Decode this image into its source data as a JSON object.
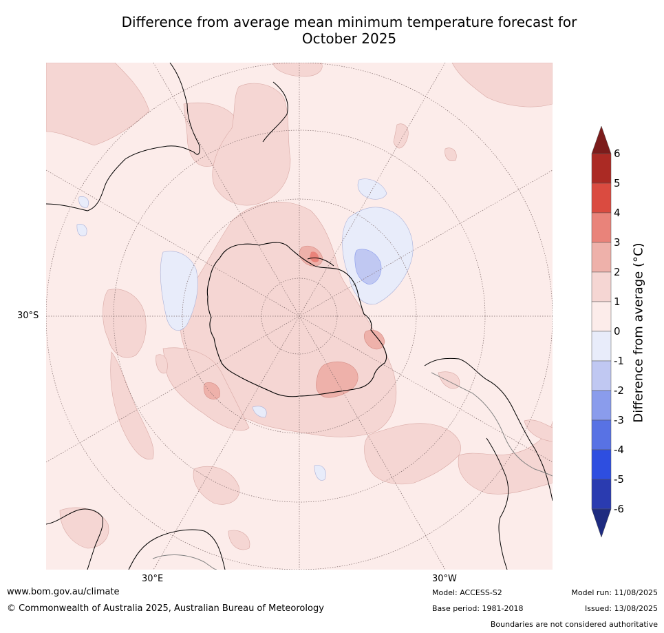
{
  "title_line1": "Difference from average mean minimum temperature forecast for",
  "title_line2": "October 2025",
  "map": {
    "projection": "south-polar-stereographic",
    "graticule_label_lat": "30°S",
    "graticule_label_lon_left": "30°E",
    "graticule_label_lon_right": "30°W",
    "anomaly_features": [
      {
        "region": "East Antarctica near 150°E coast",
        "anomaly_class": "2 to 3"
      },
      {
        "region": "Weddell Sea / Antarctic Peninsula sector",
        "anomaly_class": "2 to 3"
      },
      {
        "region": "South Atlantic near South Africa",
        "anomaly_class": "2 to 3"
      },
      {
        "region": "Southern Ocean near 40°W",
        "anomaly_class": "2 to 3"
      },
      {
        "region": "Southern Ocean south of Africa",
        "anomaly_class": "-1 to 0"
      },
      {
        "region": "Pacific sector east of New Zealand",
        "anomaly_class": "-2 to -1"
      }
    ]
  },
  "colorbar": {
    "label": "Difference from average ($^\\circ$C)",
    "label_display": "Difference from average (°C)",
    "ticks": [
      "6",
      "5",
      "4",
      "3",
      "2",
      "1",
      "0",
      "-1",
      "-2",
      "-3",
      "-4",
      "-5",
      "-6"
    ],
    "colors_top_to_bottom": [
      "#7b1c1b",
      "#ab2a24",
      "#da4b40",
      "#e9837a",
      "#eeb1aa",
      "#f5d6d3",
      "#fcecea",
      "#e8ecfa",
      "#c0c8f2",
      "#8a9cec",
      "#5872e4",
      "#2e4ee0",
      "#2a3bb0",
      "#1e2b80"
    ]
  },
  "footer": {
    "url": "www.bom.gov.au/climate",
    "copyright": "© Commonwealth of Australia 2025, Australian Bureau of Meteorology",
    "model": "Model: ACCESS-S2",
    "base_period": "Base period: 1981-2018",
    "model_run": "Model run: 11/08/2025",
    "issued": "Issued: 13/08/2025",
    "disclaimer": "Boundaries are not considered authoritative"
  }
}
